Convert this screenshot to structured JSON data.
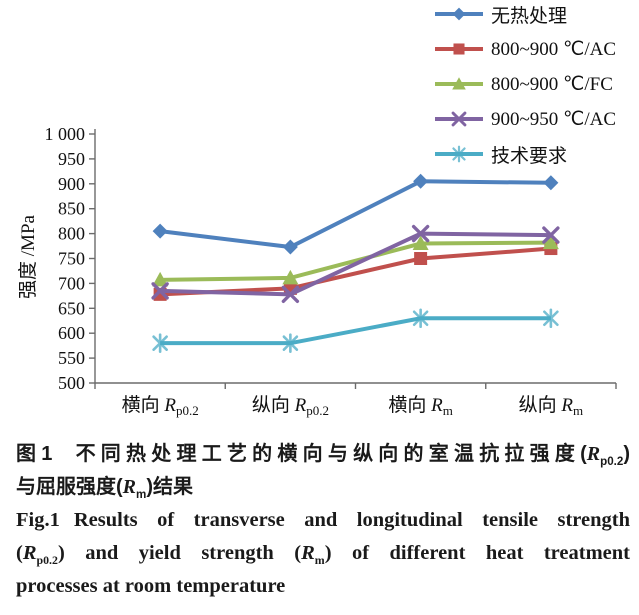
{
  "chart_data": {
    "type": "line",
    "title": "",
    "xlabel": "",
    "ylabel": "强度 /MPa",
    "ylim": [
      500,
      1000
    ],
    "y_tick_interval": 50,
    "y_tick_labels": [
      "500",
      "550",
      "600",
      "650",
      "700",
      "750",
      "800",
      "850",
      "900",
      "950",
      "1 000"
    ],
    "categories": [
      "横向 Rp0.2",
      "纵向 Rp0.2",
      "横向 Rm",
      "纵向 Rm"
    ],
    "category_label_parts": [
      {
        "pre": "横向 ",
        "sym": "R",
        "sub": "p0.2"
      },
      {
        "pre": "纵向 ",
        "sym": "R",
        "sub": "p0.2"
      },
      {
        "pre": "横向 ",
        "sym": "R",
        "sub": "m"
      },
      {
        "pre": "纵向 ",
        "sym": "R",
        "sub": "m"
      }
    ],
    "grid": false,
    "legend_position": "top-right",
    "series": [
      {
        "name": "无热处理",
        "color": "#4F81BD",
        "marker": "diamond",
        "values": [
          805,
          773,
          905,
          902
        ]
      },
      {
        "name": "800~900 ℃/AC",
        "color": "#C0504D",
        "marker": "square",
        "values": [
          678,
          690,
          750,
          770
        ]
      },
      {
        "name": "800~900 ℃/FC",
        "color": "#9BBB59",
        "marker": "triangle",
        "values": [
          707,
          711,
          780,
          782
        ]
      },
      {
        "name": "900~950 ℃/AC",
        "color": "#8064A2",
        "marker": "x",
        "values": [
          685,
          678,
          800,
          797
        ]
      },
      {
        "name": "技术要求",
        "color": "#4BACC6",
        "marker": "asterisk",
        "values": [
          580,
          580,
          630,
          630
        ]
      }
    ],
    "axis_color": "#6b6b6b"
  },
  "caption": {
    "zh": {
      "fig": "图1",
      "l1_pre": "不同热处理工艺的横向与纵向的室温抗拉强度(",
      "l1_sym": "R",
      "l1_sub": "p0.2",
      "l1_post": ")",
      "l2_pre": "与屈服强度(",
      "l2_sym": "R",
      "l2_sub": "m",
      "l2_post": ")结果"
    },
    "en": {
      "fig": "Fig.1",
      "l1": "Results of transverse and longitudinal tensile strength",
      "l2_pre": "(",
      "l2_sym": "R",
      "l2_sub": "p0.2",
      "l2_mid": ") and yield strength (",
      "l2_sym2": "R",
      "l2_sub2": "m",
      "l2_post": ") of different heat treatment",
      "l3": "processes at room temperature"
    }
  }
}
